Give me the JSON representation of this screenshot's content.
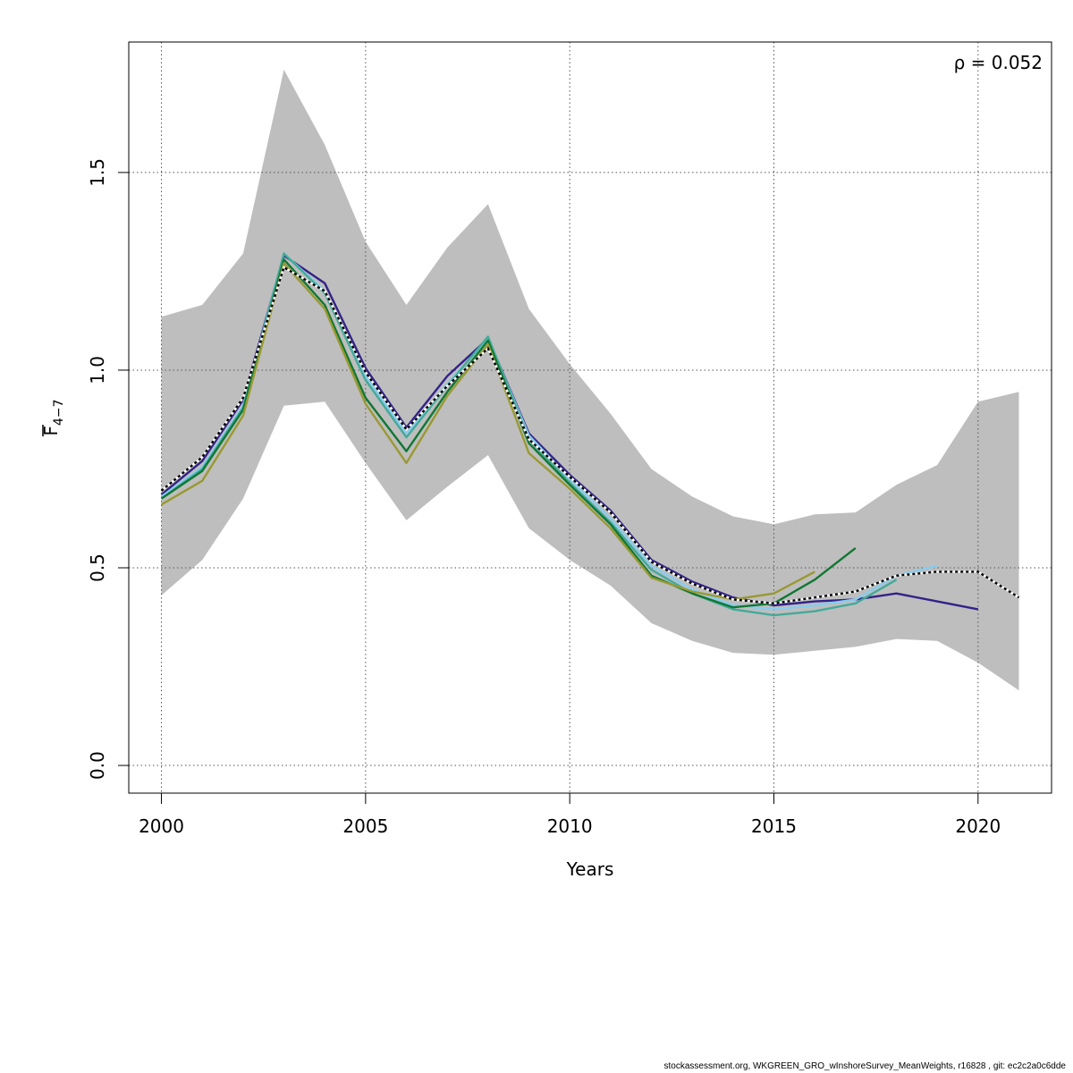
{
  "chart_data": {
    "type": "line",
    "xlabel": "Years",
    "ylabel": {
      "main": "F",
      "sub": "4−7"
    },
    "annotation": "ρ = 0.052",
    "xlim": [
      1999.2,
      2021.8
    ],
    "ylim": [
      -0.07,
      1.83
    ],
    "xticks": [
      "2000",
      "2005",
      "2010",
      "2015",
      "2020"
    ],
    "yticks": [
      "0.0",
      "0.5",
      "1.0",
      "1.5"
    ],
    "grid": true,
    "band": {
      "x": [
        2000,
        2001,
        2002,
        2003,
        2004,
        2005,
        2006,
        2007,
        2008,
        2009,
        2010,
        2011,
        2012,
        2013,
        2014,
        2015,
        2016,
        2017,
        2018,
        2019,
        2020,
        2021
      ],
      "upper": [
        1.135,
        1.165,
        1.295,
        1.76,
        1.57,
        1.325,
        1.165,
        1.31,
        1.42,
        1.155,
        1.015,
        0.89,
        0.75,
        0.68,
        0.63,
        0.61,
        0.635,
        0.64,
        0.71,
        0.76,
        0.92,
        0.945
      ],
      "lower": [
        0.43,
        0.52,
        0.675,
        0.91,
        0.92,
        0.765,
        0.62,
        0.705,
        0.785,
        0.6,
        0.52,
        0.455,
        0.36,
        0.315,
        0.285,
        0.28,
        0.29,
        0.3,
        0.32,
        0.315,
        0.26,
        0.19
      ],
      "color": "#bebebe"
    },
    "series": [
      {
        "color": "#000000",
        "dashed": true,
        "x": [
          2000,
          2001,
          2002,
          2003,
          2004,
          2005,
          2006,
          2007,
          2008,
          2009,
          2010,
          2011,
          2012,
          2013,
          2014,
          2015,
          2016,
          2017,
          2018,
          2019,
          2020,
          2021
        ],
        "y": [
          0.695,
          0.78,
          0.93,
          1.26,
          1.2,
          0.995,
          0.85,
          0.96,
          1.055,
          0.825,
          0.73,
          0.64,
          0.515,
          0.46,
          0.42,
          0.41,
          0.425,
          0.44,
          0.48,
          0.49,
          0.49,
          0.425
        ]
      },
      {
        "color": "#332288",
        "x": [
          2000,
          2001,
          2002,
          2003,
          2004,
          2005,
          2006,
          2007,
          2008,
          2009,
          2010,
          2011,
          2012,
          2013,
          2014,
          2015,
          2016,
          2017,
          2018,
          2019,
          2020
        ],
        "y": [
          0.685,
          0.77,
          0.925,
          1.29,
          1.22,
          1.005,
          0.855,
          0.985,
          1.08,
          0.84,
          0.735,
          0.645,
          0.52,
          0.465,
          0.425,
          0.405,
          0.415,
          0.42,
          0.435,
          0.415,
          0.395
        ]
      },
      {
        "color": "#88ccee",
        "x": [
          2000,
          2001,
          2002,
          2003,
          2004,
          2005,
          2006,
          2007,
          2008,
          2009,
          2010,
          2011,
          2012,
          2013,
          2014,
          2015,
          2016,
          2017,
          2018,
          2019
        ],
        "y": [
          0.68,
          0.755,
          0.91,
          1.295,
          1.2,
          0.985,
          0.84,
          0.965,
          1.08,
          0.835,
          0.725,
          0.625,
          0.505,
          0.445,
          0.405,
          0.395,
          0.405,
          0.42,
          0.48,
          0.505
        ]
      },
      {
        "color": "#44aa99",
        "x": [
          2000,
          2001,
          2002,
          2003,
          2004,
          2005,
          2006,
          2007,
          2008,
          2009,
          2010,
          2011,
          2012,
          2013,
          2014,
          2015,
          2016,
          2017,
          2018
        ],
        "y": [
          0.675,
          0.75,
          0.905,
          1.295,
          1.195,
          0.975,
          0.83,
          0.96,
          1.085,
          0.825,
          0.715,
          0.615,
          0.495,
          0.435,
          0.395,
          0.38,
          0.39,
          0.41,
          0.47
        ]
      },
      {
        "color": "#117733",
        "x": [
          2000,
          2001,
          2002,
          2003,
          2004,
          2005,
          2006,
          2007,
          2008,
          2009,
          2010,
          2011,
          2012,
          2013,
          2014,
          2015,
          2016,
          2017
        ],
        "y": [
          0.675,
          0.745,
          0.9,
          1.28,
          1.165,
          0.93,
          0.795,
          0.945,
          1.075,
          0.815,
          0.71,
          0.61,
          0.48,
          0.435,
          0.4,
          0.41,
          0.47,
          0.55
        ]
      },
      {
        "color": "#999933",
        "x": [
          2000,
          2001,
          2002,
          2003,
          2004,
          2005,
          2006,
          2007,
          2008,
          2009,
          2010,
          2011,
          2012,
          2013,
          2014,
          2015,
          2016
        ],
        "y": [
          0.66,
          0.72,
          0.885,
          1.27,
          1.155,
          0.915,
          0.765,
          0.935,
          1.065,
          0.79,
          0.7,
          0.6,
          0.475,
          0.44,
          0.42,
          0.435,
          0.49
        ]
      }
    ]
  },
  "footer": "stockassessment.org, WKGREEN_GRO_wInshoreSurvey_MeanWeights, r16828 , git: ec2c2a0c6dde"
}
